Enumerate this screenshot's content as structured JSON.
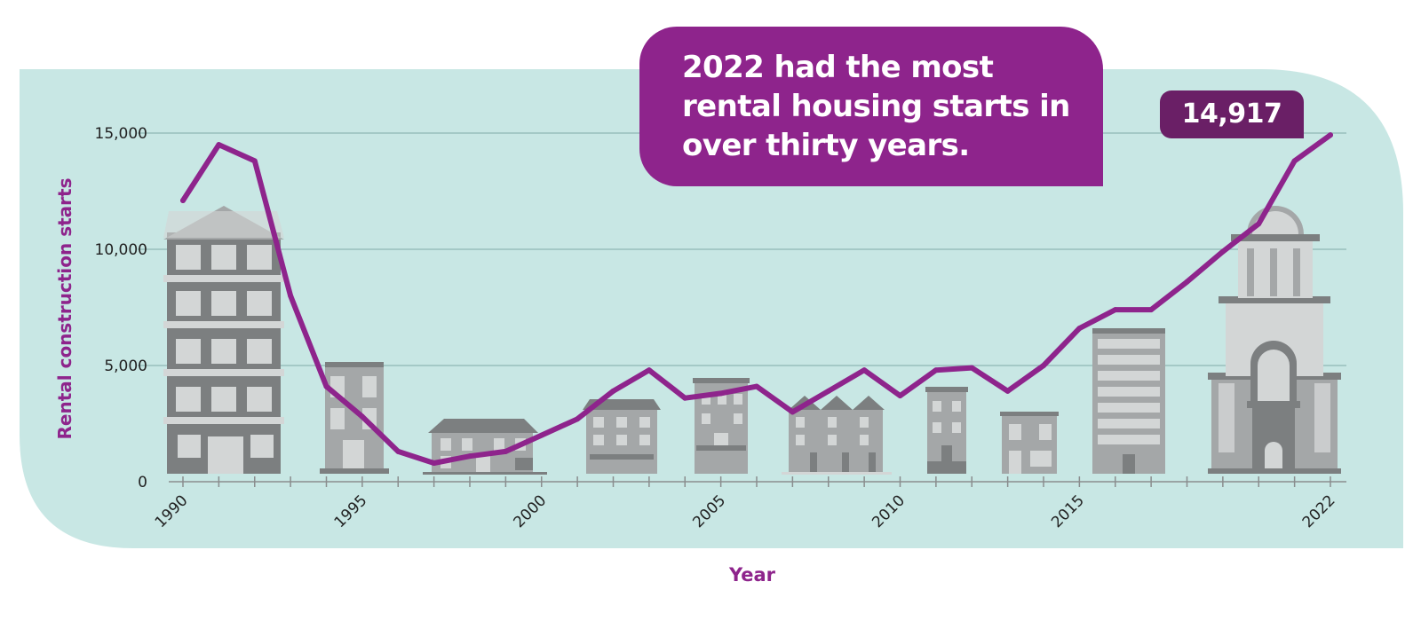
{
  "colors": {
    "background_panel": "#c8e7e4",
    "accent": "#8e248c",
    "badge": "#6a1f66",
    "building_dark": "#7c7f80",
    "building_mid": "#a4a7a8",
    "building_light": "#d3d6d6",
    "gridline": "#8fb7b4"
  },
  "callout": {
    "text": "2022 had the most rental housing starts in over thirty years."
  },
  "chart_data": {
    "type": "line",
    "title": "",
    "xlabel": "Year",
    "ylabel": "Rental construction starts",
    "xlim": [
      1990,
      2022
    ],
    "ylim": [
      0,
      15000
    ],
    "grid": true,
    "legend": "none",
    "x_ticks": [
      1990,
      1995,
      2000,
      2005,
      2010,
      2015,
      2022
    ],
    "x_tick_labels": [
      "1990",
      "1995",
      "2000",
      "2005",
      "2010",
      "2015",
      "2022"
    ],
    "y_ticks": [
      0,
      5000,
      10000,
      15000
    ],
    "y_tick_labels": [
      "0",
      "5,000",
      "10,000",
      "15,000"
    ],
    "x": [
      1990,
      1991,
      1992,
      1993,
      1994,
      1995,
      1996,
      1997,
      1998,
      1999,
      2000,
      2001,
      2002,
      2003,
      2004,
      2005,
      2006,
      2007,
      2008,
      2009,
      2010,
      2011,
      2012,
      2013,
      2014,
      2015,
      2016,
      2017,
      2018,
      2019,
      2020,
      2021,
      2022
    ],
    "series": [
      {
        "color": "#8e248c",
        "values": [
          12100,
          14500,
          13800,
          8000,
          4100,
          2800,
          1300,
          800,
          1100,
          1300,
          2000,
          2700,
          3900,
          4800,
          3600,
          3800,
          4100,
          3000,
          3900,
          4800,
          3700,
          4800,
          4900,
          3900,
          5000,
          6600,
          7400,
          7400,
          8600,
          9900,
          11100,
          13800,
          14917
        ]
      }
    ],
    "annotations": [
      {
        "x": 2022,
        "y": 14917,
        "label": "14,917"
      }
    ]
  }
}
